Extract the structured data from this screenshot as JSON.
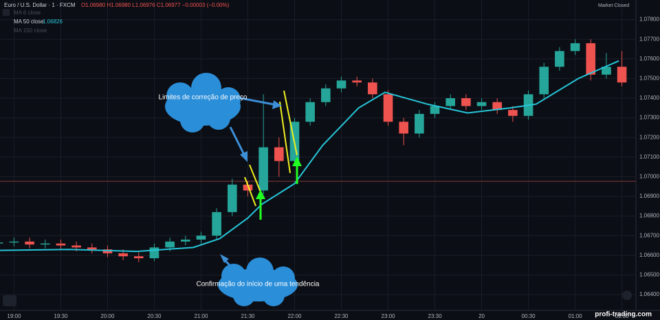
{
  "chart_data": {
    "type": "candlestick",
    "header": {
      "symbol": "Euro / U.S. Dollar · 1 · FXCM",
      "ohlc": "O1.06980 H1.06980 L1.06976 C1.06977 −0.00003 (−0.00%)",
      "status": "Market Closed"
    },
    "indicators": [
      "MA 6 close",
      "MA 50 close",
      "MA 150 close"
    ],
    "indicator_value": "1.06826",
    "annotations": [
      "Limites de correção de preço",
      "Confirmação do início de uma tendência"
    ],
    "watermark": "profi-trading.com",
    "up_color": "#26a69a",
    "down_color": "#ef5350",
    "x": [
      -10,
      0,
      10,
      20,
      30,
      40,
      50,
      60,
      70,
      80,
      90,
      100,
      110,
      120,
      130,
      140,
      150,
      160,
      170,
      180,
      190,
      200,
      210,
      220,
      230,
      240,
      250,
      260,
      270,
      280,
      290,
      300,
      310,
      320,
      330,
      340,
      350,
      360,
      370,
      380,
      390
    ],
    "open": [
      1.0666,
      1.06665,
      1.0667,
      1.06655,
      1.0666,
      1.0665,
      1.0664,
      1.0663,
      1.0661,
      1.06595,
      1.06585,
      1.0664,
      1.0667,
      1.0668,
      1.067,
      1.0682,
      1.0696,
      1.0693,
      1.0715,
      1.0708,
      1.0728,
      1.0738,
      1.0745,
      1.0749,
      1.0748,
      1.0742,
      1.0728,
      1.0722,
      1.0732,
      1.0736,
      1.074,
      1.0736,
      1.0738,
      1.0734,
      1.0731,
      1.0742,
      1.0756,
      1.0764,
      1.0768,
      1.0752,
      1.0756
    ],
    "high": [
      1.06685,
      1.0669,
      1.0669,
      1.0668,
      1.0668,
      1.0667,
      1.0666,
      1.0665,
      1.0663,
      1.06615,
      1.0666,
      1.0669,
      1.067,
      1.0672,
      1.0684,
      1.0699,
      1.0698,
      1.0742,
      1.072,
      1.073,
      1.074,
      1.0747,
      1.0751,
      1.0751,
      1.075,
      1.0744,
      1.073,
      1.0734,
      1.0738,
      1.0742,
      1.0742,
      1.074,
      1.074,
      1.0736,
      1.0744,
      1.0758,
      1.0766,
      1.077,
      1.077,
      1.0763,
      1.0764
    ],
    "low": [
      1.0664,
      1.06645,
      1.06635,
      1.06635,
      1.0663,
      1.0662,
      1.0661,
      1.0659,
      1.06575,
      1.06565,
      1.0657,
      1.0662,
      1.0665,
      1.0666,
      1.0668,
      1.068,
      1.069,
      1.0691,
      1.07,
      1.0706,
      1.0726,
      1.0736,
      1.0743,
      1.0746,
      1.074,
      1.0726,
      1.0716,
      1.072,
      1.073,
      1.0734,
      1.0734,
      1.0734,
      1.0732,
      1.0728,
      1.0729,
      1.074,
      1.0754,
      1.0762,
      1.0749,
      1.075,
      1.0746
    ],
    "close": [
      1.06665,
      1.0667,
      1.06655,
      1.0666,
      1.0665,
      1.0664,
      1.0663,
      1.0661,
      1.06595,
      1.06585,
      1.0664,
      1.0667,
      1.0668,
      1.067,
      1.0682,
      1.0696,
      1.0693,
      1.0715,
      1.0708,
      1.0728,
      1.0738,
      1.0745,
      1.0749,
      1.0748,
      1.0742,
      1.0728,
      1.0722,
      1.0732,
      1.0736,
      1.074,
      1.0736,
      1.0738,
      1.0734,
      1.0731,
      1.0742,
      1.0756,
      1.0764,
      1.0768,
      1.0752,
      1.0756,
      1.0748
    ],
    "ma": {
      "name": "MA 50 close",
      "color": "#26c6da",
      "x": [
        -9,
        35,
        79,
        115,
        132,
        150,
        159,
        180,
        198,
        221,
        238,
        265,
        291,
        318,
        335,
        362,
        388
      ],
      "values": [
        1.06625,
        1.0663,
        1.0662,
        1.0664,
        1.06685,
        1.0679,
        1.0686,
        1.06965,
        1.0716,
        1.0735,
        1.0743,
        1.0737,
        1.07325,
        1.0735,
        1.0737,
        1.075,
        1.0759
      ]
    },
    "xlim": [
      -9,
      399
    ],
    "ylim": [
      1.0633,
      1.079
    ],
    "xticks": [
      {
        "value": 0,
        "label": "19:00"
      },
      {
        "value": 30,
        "label": "19:30"
      },
      {
        "value": 60,
        "label": "20:00"
      },
      {
        "value": 90,
        "label": "20:30"
      },
      {
        "value": 120,
        "label": "21:00"
      },
      {
        "value": 150,
        "label": "21:30"
      },
      {
        "value": 180,
        "label": "22:00"
      },
      {
        "value": 210,
        "label": "22:30"
      },
      {
        "value": 240,
        "label": "23:00"
      },
      {
        "value": 270,
        "label": "23:30"
      },
      {
        "value": 300,
        "label": "20"
      },
      {
        "value": 330,
        "label": "00:30"
      },
      {
        "value": 360,
        "label": "01:00"
      },
      {
        "value": 390,
        "label": "01:30"
      }
    ],
    "yticks": [
      {
        "value": 1.078,
        "label": "1.07800"
      },
      {
        "value": 1.077,
        "label": "1.07700"
      },
      {
        "value": 1.076,
        "label": "1.07600"
      },
      {
        "value": 1.075,
        "label": "1.07500"
      },
      {
        "value": 1.074,
        "label": "1.07400"
      },
      {
        "value": 1.073,
        "label": "1.07300"
      },
      {
        "value": 1.072,
        "label": "1.07200"
      },
      {
        "value": 1.071,
        "label": "1.07100"
      },
      {
        "value": 1.07,
        "label": "1.07000"
      },
      {
        "value": 1.069,
        "label": "1.06900"
      },
      {
        "value": 1.068,
        "label": "1.06800"
      },
      {
        "value": 1.067,
        "label": "1.06700"
      },
      {
        "value": 1.066,
        "label": "1.06600"
      },
      {
        "value": 1.065,
        "label": "1.06500"
      },
      {
        "value": 1.064,
        "label": "1.06400"
      }
    ],
    "grid": true
  }
}
